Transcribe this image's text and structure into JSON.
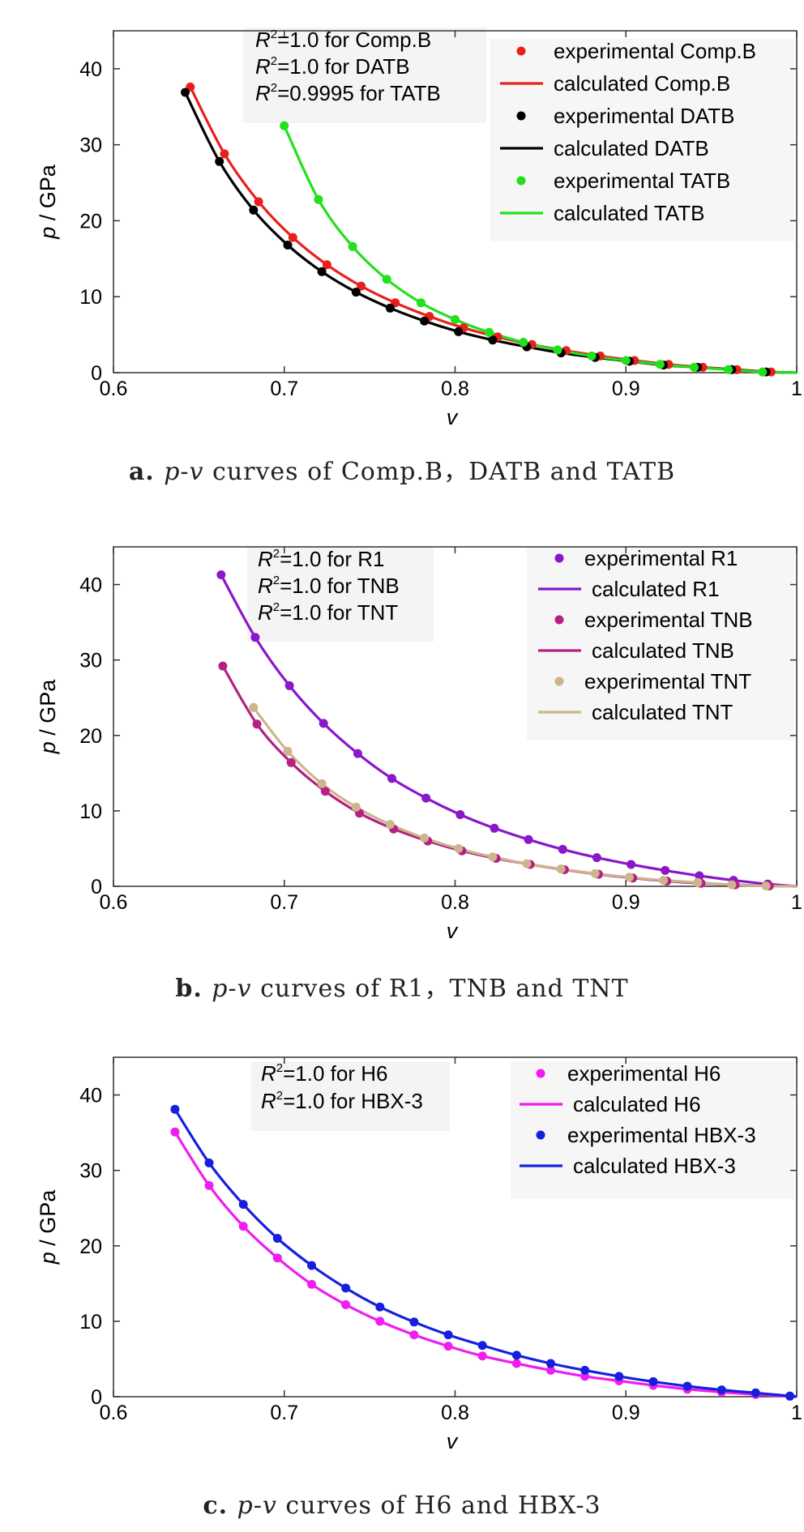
{
  "chart_data": [
    {
      "type": "line",
      "panel": "a.",
      "caption": "p-v curves of Comp.B, DATB and TATB",
      "caption_parts": {
        "label": "a.",
        "var": "p-v",
        "rest": " curves of Comp.B，DATB and TATB"
      },
      "xlabel": "v",
      "ylabel": "p / GPa",
      "xlim": [
        0.6,
        1.0
      ],
      "ylim": [
        0,
        45
      ],
      "xticks": [
        "0.6",
        "0.7",
        "0.8",
        "0.9",
        "1"
      ],
      "yticks": [
        "0",
        "10",
        "20",
        "30",
        "40"
      ],
      "legend_position": "top-right",
      "annotations": [
        {
          "sup_base": "R",
          "sup": "2",
          "text": "=1.0 for Comp.B"
        },
        {
          "sup_base": "R",
          "sup": "2",
          "text": "=1.0 for DATB"
        },
        {
          "sup_base": "R",
          "sup": "2",
          "text": "=0.9995 for TATB"
        }
      ],
      "series": [
        {
          "name": "Comp.B",
          "exp_label": "experimental Comp.B",
          "calc_label": "calculated Comp.B",
          "color": "#e8201c",
          "x": [
            0.645,
            0.665,
            0.685,
            0.705,
            0.725,
            0.745,
            0.765,
            0.785,
            0.805,
            0.825,
            0.845,
            0.865,
            0.885,
            0.905,
            0.925,
            0.945,
            0.965,
            0.985
          ],
          "y": [
            37.6,
            28.8,
            22.5,
            17.8,
            14.2,
            11.4,
            9.2,
            7.4,
            5.9,
            4.7,
            3.7,
            2.9,
            2.2,
            1.6,
            1.1,
            0.7,
            0.4,
            0.1
          ]
        },
        {
          "name": "DATB",
          "exp_label": "experimental DATB",
          "calc_label": "calculated DATB",
          "color": "#000000",
          "x": [
            0.642,
            0.662,
            0.682,
            0.702,
            0.722,
            0.742,
            0.762,
            0.782,
            0.802,
            0.822,
            0.842,
            0.862,
            0.882,
            0.902,
            0.922,
            0.942,
            0.962,
            0.982
          ],
          "y": [
            36.9,
            27.8,
            21.4,
            16.8,
            13.3,
            10.6,
            8.5,
            6.8,
            5.4,
            4.3,
            3.4,
            2.6,
            2.0,
            1.5,
            1.0,
            0.7,
            0.4,
            0.1
          ]
        },
        {
          "name": "TATB",
          "exp_label": "experimental TATB",
          "calc_label": "calculated TATB",
          "color": "#22e01c",
          "x": [
            0.7,
            0.72,
            0.74,
            0.76,
            0.78,
            0.8,
            0.82,
            0.84,
            0.86,
            0.88,
            0.9,
            0.92,
            0.94,
            0.96,
            0.98
          ],
          "y": [
            32.5,
            22.8,
            16.6,
            12.3,
            9.2,
            7.0,
            5.3,
            4.0,
            3.0,
            2.2,
            1.6,
            1.1,
            0.7,
            0.4,
            0.1
          ]
        }
      ]
    },
    {
      "type": "line",
      "panel": "b.",
      "caption": "p-v curves of R1, TNB and TNT",
      "caption_parts": {
        "label": "b.",
        "var": "p-v",
        "rest": " curves of R1，TNB and TNT"
      },
      "xlabel": "v",
      "ylabel": "p / GPa",
      "xlim": [
        0.6,
        1.0
      ],
      "ylim": [
        0,
        45
      ],
      "xticks": [
        "0.6",
        "0.7",
        "0.8",
        "0.9",
        "1"
      ],
      "yticks": [
        "0",
        "10",
        "20",
        "30",
        "40"
      ],
      "legend_position": "top-right",
      "annotations": [
        {
          "sup_base": "R",
          "sup": "2",
          "text": "=1.0 for R1"
        },
        {
          "sup_base": "R",
          "sup": "2",
          "text": "=1.0 for TNB"
        },
        {
          "sup_base": "R",
          "sup": "2",
          "text": "=1.0 for TNT"
        }
      ],
      "series": [
        {
          "name": "R1",
          "exp_label": "experimental R1",
          "calc_label": "calculated R1",
          "color": "#8a17c8",
          "x": [
            0.663,
            0.683,
            0.703,
            0.723,
            0.743,
            0.763,
            0.783,
            0.803,
            0.823,
            0.843,
            0.863,
            0.883,
            0.903,
            0.923,
            0.943,
            0.963,
            0.983
          ],
          "y": [
            41.3,
            33.0,
            26.6,
            21.6,
            17.6,
            14.3,
            11.7,
            9.5,
            7.7,
            6.2,
            4.9,
            3.8,
            2.9,
            2.1,
            1.4,
            0.8,
            0.3
          ]
        },
        {
          "name": "TNB",
          "exp_label": "experimental TNB",
          "calc_label": "calculated TNB",
          "color": "#b52182",
          "x": [
            0.664,
            0.684,
            0.704,
            0.724,
            0.744,
            0.764,
            0.784,
            0.804,
            0.824,
            0.844,
            0.864,
            0.884,
            0.904,
            0.924,
            0.944,
            0.964,
            0.984
          ],
          "y": [
            29.2,
            21.5,
            16.4,
            12.6,
            9.7,
            7.6,
            6.0,
            4.7,
            3.7,
            2.9,
            2.2,
            1.6,
            1.1,
            0.7,
            0.4,
            0.2,
            0.05
          ]
        },
        {
          "name": "TNT",
          "exp_label": "experimental TNT",
          "calc_label": "calculated TNT",
          "color": "#cdb48c",
          "x": [
            0.682,
            0.702,
            0.722,
            0.742,
            0.762,
            0.782,
            0.802,
            0.822,
            0.842,
            0.862,
            0.882,
            0.902,
            0.922,
            0.942,
            0.962,
            0.982
          ],
          "y": [
            23.7,
            17.9,
            13.6,
            10.5,
            8.2,
            6.4,
            5.0,
            3.9,
            3.0,
            2.3,
            1.7,
            1.2,
            0.8,
            0.5,
            0.2,
            0.05
          ]
        }
      ]
    },
    {
      "type": "line",
      "panel": "c.",
      "caption": "p-v curves of H6 and HBX-3",
      "caption_parts": {
        "label": "c.",
        "var": "p-v",
        "rest": " curves of H6 and HBX-3"
      },
      "xlabel": "v",
      "ylabel": "p / GPa",
      "xlim": [
        0.6,
        1.0
      ],
      "ylim": [
        0,
        45
      ],
      "xticks": [
        "0.6",
        "0.7",
        "0.8",
        "0.9",
        "1"
      ],
      "yticks": [
        "0",
        "10",
        "20",
        "30",
        "40"
      ],
      "legend_position": "top-right",
      "annotations": [
        {
          "sup_base": "R",
          "sup": "2",
          "text": "=1.0 for H6"
        },
        {
          "sup_base": "R",
          "sup": "2",
          "text": "=1.0 for HBX-3"
        }
      ],
      "series": [
        {
          "name": "H6",
          "exp_label": "experimental H6",
          "calc_label": "calculated H6",
          "color": "#f01cf0",
          "x": [
            0.636,
            0.656,
            0.676,
            0.696,
            0.716,
            0.736,
            0.756,
            0.776,
            0.796,
            0.816,
            0.836,
            0.856,
            0.876,
            0.896,
            0.916,
            0.936,
            0.956,
            0.976,
            0.996
          ],
          "y": [
            35.1,
            28.0,
            22.6,
            18.4,
            14.9,
            12.2,
            10.0,
            8.2,
            6.7,
            5.4,
            4.4,
            3.5,
            2.7,
            2.1,
            1.5,
            1.0,
            0.6,
            0.3,
            0.05
          ]
        },
        {
          "name": "HBX-3",
          "exp_label": "experimental HBX-3",
          "calc_label": "calculated HBX-3",
          "color": "#1620dc",
          "x": [
            0.636,
            0.656,
            0.676,
            0.696,
            0.716,
            0.736,
            0.756,
            0.776,
            0.796,
            0.816,
            0.836,
            0.856,
            0.876,
            0.896,
            0.916,
            0.936,
            0.956,
            0.976,
            0.996
          ],
          "y": [
            38.1,
            31.0,
            25.5,
            21.0,
            17.4,
            14.4,
            11.9,
            9.9,
            8.2,
            6.8,
            5.5,
            4.4,
            3.5,
            2.7,
            2.0,
            1.4,
            0.9,
            0.5,
            0.1
          ]
        }
      ]
    }
  ]
}
